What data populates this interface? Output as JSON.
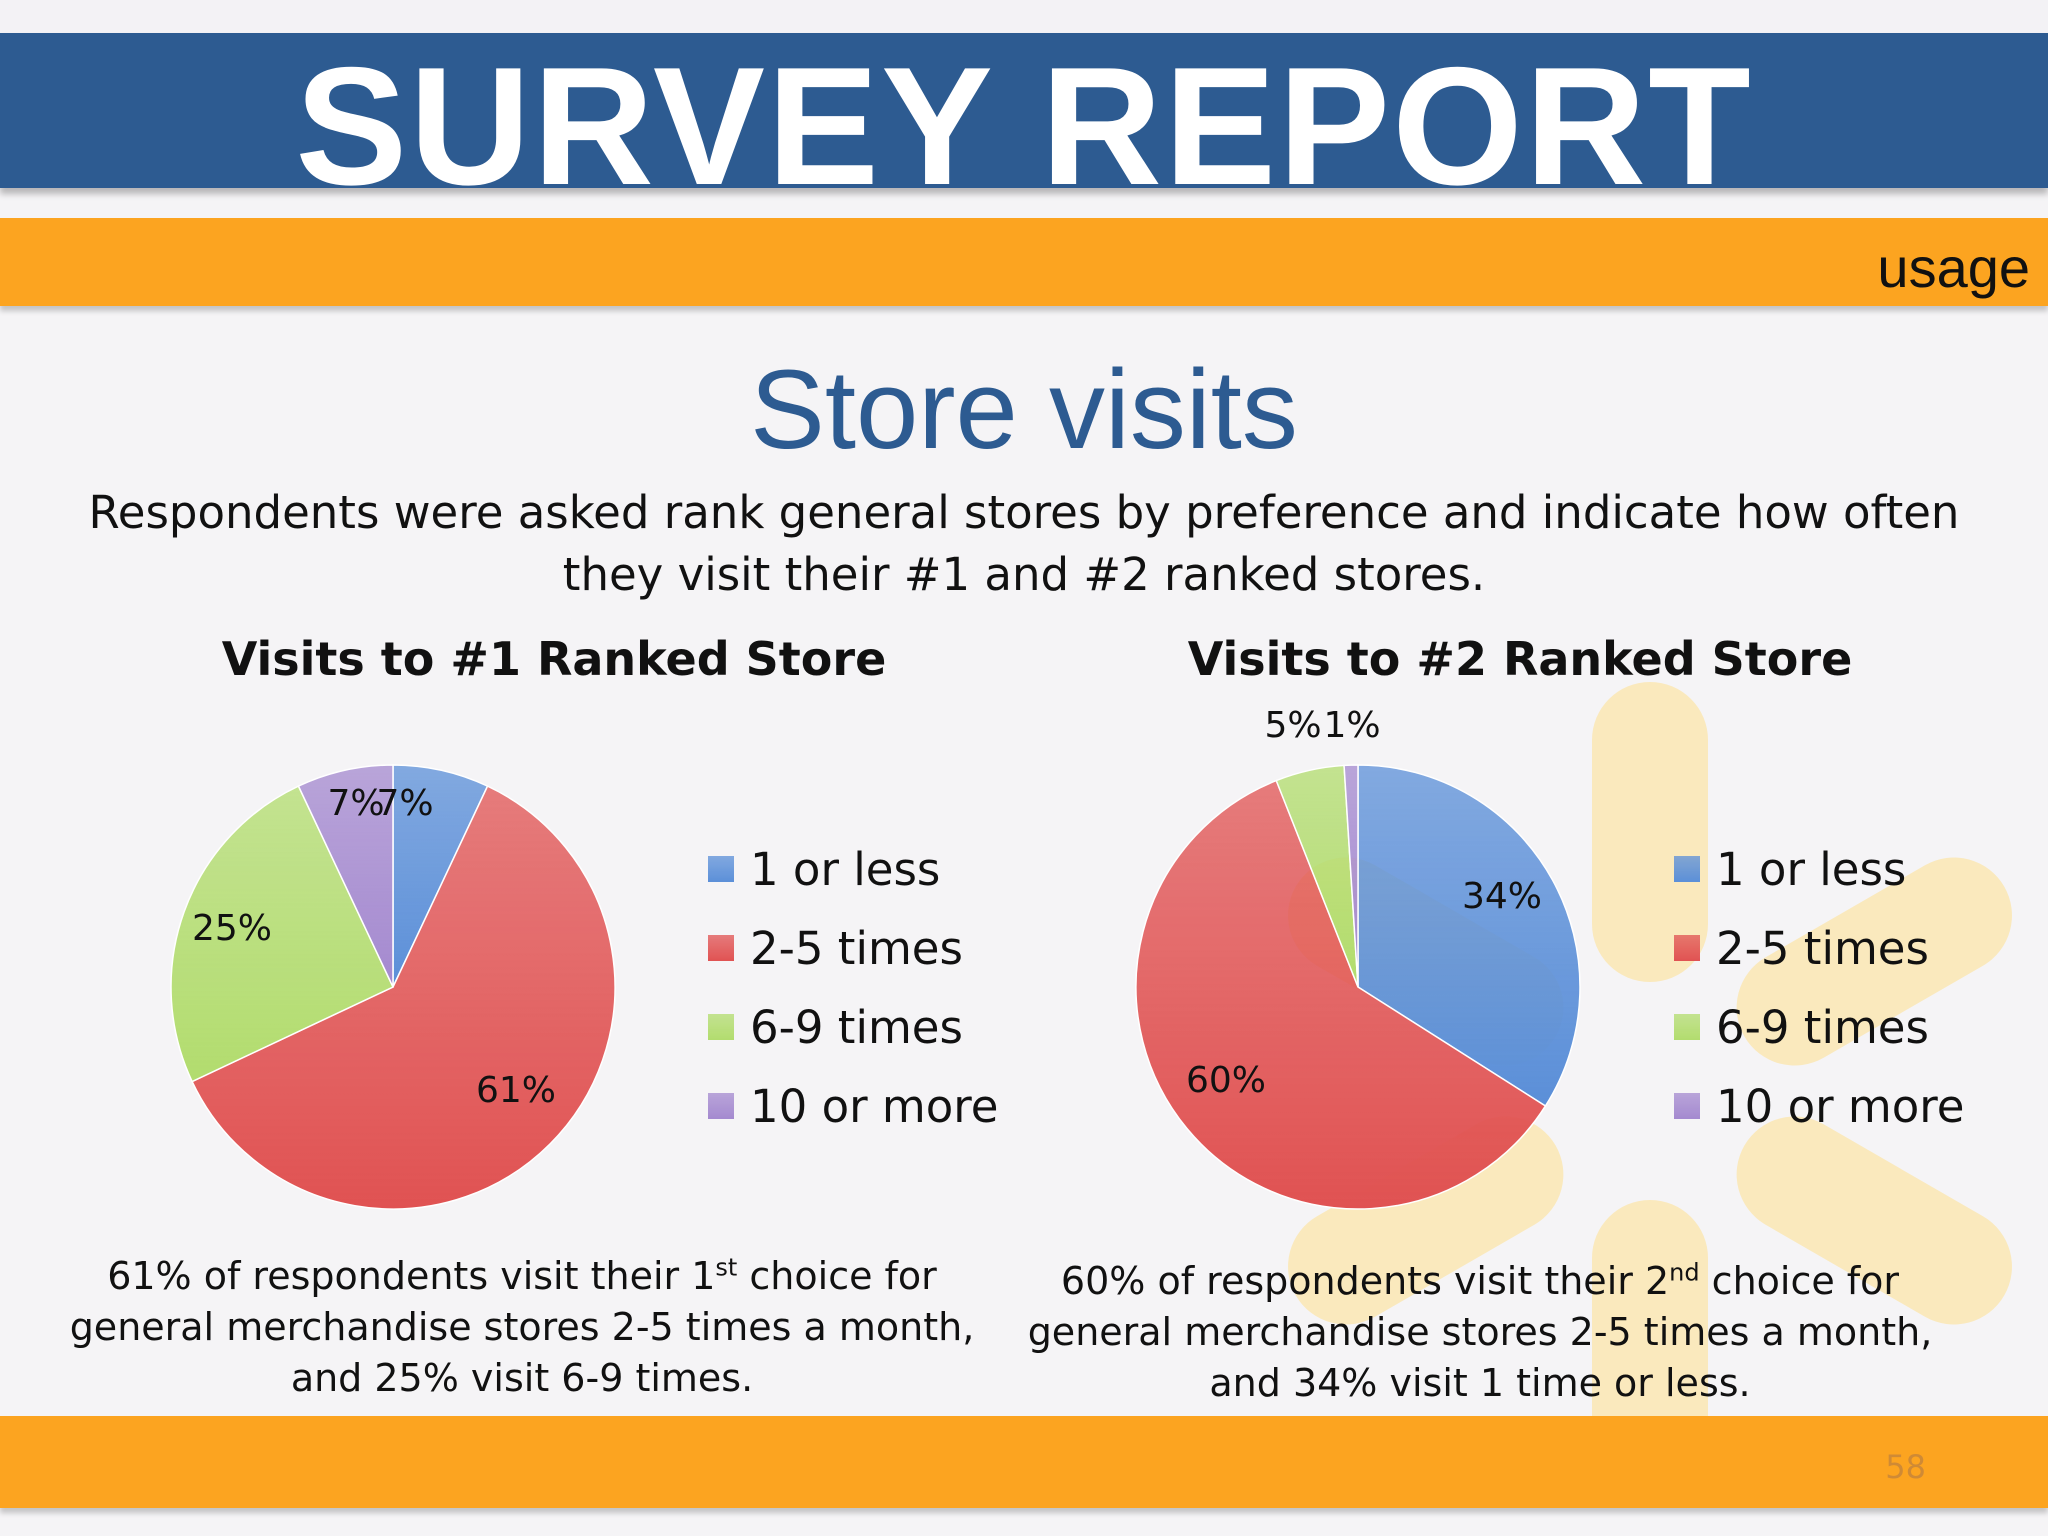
{
  "header": {
    "title": "SURVEY REPORT",
    "section": "usage"
  },
  "slide": {
    "heading": "Store visits",
    "intro": "Respondents were asked rank general stores by preference and indicate how often they visit their #1 and #2 ranked stores."
  },
  "colors": {
    "title_band": "#2d5b91",
    "accent_band": "#fca420",
    "series": [
      "#5b8fd8",
      "#e05252",
      "#b2dc6e",
      "#a489cf"
    ]
  },
  "chart_data": [
    {
      "type": "pie",
      "title": "Visits to #1 Ranked Store",
      "categories": [
        "1 or less",
        "2-5 times",
        "6-9 times",
        "10 or more"
      ],
      "values": [
        7,
        61,
        25,
        7
      ],
      "labels": [
        "7%",
        "61%",
        "25%",
        "7%"
      ],
      "legend": "right"
    },
    {
      "type": "pie",
      "title": "Visits to #2 Ranked Store",
      "categories": [
        "1 or less",
        "2-5 times",
        "6-9 times",
        "10 or more"
      ],
      "values": [
        34,
        60,
        5,
        1
      ],
      "labels": [
        "34%",
        "60%",
        "5%",
        "1%"
      ],
      "legend": "right"
    }
  ],
  "captions": [
    {
      "pre": "61% of respondents visit their 1",
      "sup": "st",
      "post": " choice for general merchandise stores 2-5 times a month, and 25% visit 6-9 times."
    },
    {
      "pre": "60% of respondents visit their 2",
      "sup": "nd",
      "post": " choice for general merchandise stores 2-5 times a month, and 34% visit 1 time or less."
    }
  ],
  "footer": {
    "page_number": "58"
  }
}
